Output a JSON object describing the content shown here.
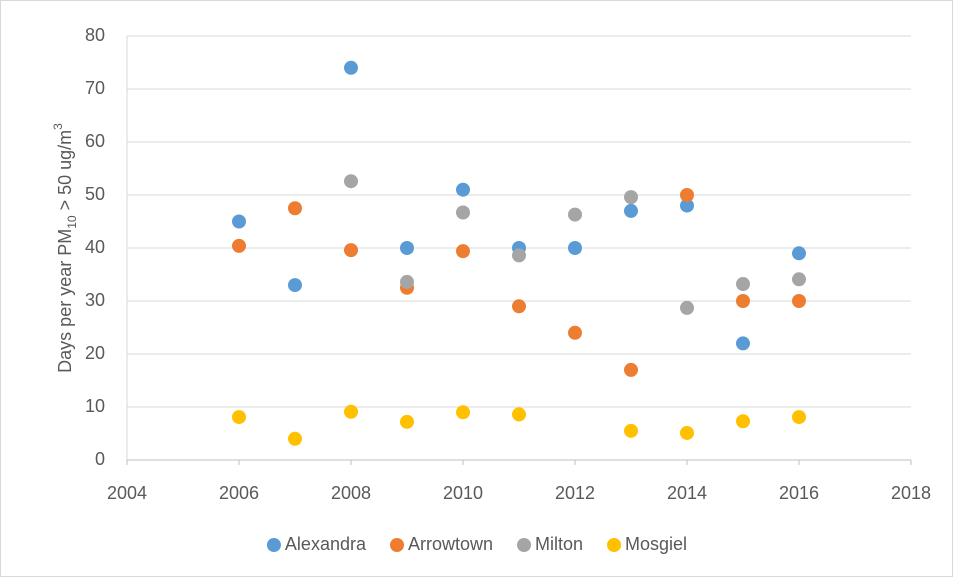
{
  "chart_data": {
    "type": "scatter",
    "y_label": [
      "Days per year PM",
      "10",
      " > 50 ug/m",
      "3"
    ],
    "xlim": [
      2004,
      2018
    ],
    "xticks": [
      2004,
      2006,
      2008,
      2010,
      2012,
      2014,
      2016,
      2018
    ],
    "ylim": [
      0,
      80
    ],
    "yticks": [
      0,
      10,
      20,
      30,
      40,
      50,
      60,
      70,
      80
    ],
    "grid": true,
    "legend": "bottom",
    "series": [
      {
        "name": "Alexandra",
        "color": "#5b9bd5",
        "x": [
          2006,
          2007,
          2008,
          2009,
          2010,
          2011,
          2012,
          2013,
          2014,
          2015,
          2016
        ],
        "values": [
          45,
          33,
          74,
          40,
          51,
          40,
          40,
          47,
          48,
          22,
          39
        ]
      },
      {
        "name": "Arrowtown",
        "color": "#ed7d31",
        "x": [
          2006,
          2007,
          2008,
          2009,
          2010,
          2011,
          2012,
          2013,
          2014,
          2015,
          2016
        ],
        "values": [
          40.4,
          47.5,
          39.6,
          32.5,
          39.4,
          29,
          24,
          17,
          50,
          30,
          30
        ]
      },
      {
        "name": "Milton",
        "color": "#a5a5a5",
        "x": [
          2008,
          2009,
          2010,
          2011,
          2012,
          2013,
          2014,
          2015,
          2016
        ],
        "values": [
          52.6,
          33.6,
          46.7,
          38.6,
          46.3,
          49.6,
          28.7,
          33.2,
          34.1
        ]
      },
      {
        "name": "Mosgiel",
        "color": "#ffc000",
        "x": [
          2006,
          2007,
          2008,
          2009,
          2010,
          2011,
          2013,
          2014,
          2015,
          2016
        ],
        "values": [
          8.1,
          4,
          9.1,
          7.2,
          9,
          8.6,
          5.5,
          5.1,
          7.3,
          8.1
        ]
      }
    ]
  }
}
